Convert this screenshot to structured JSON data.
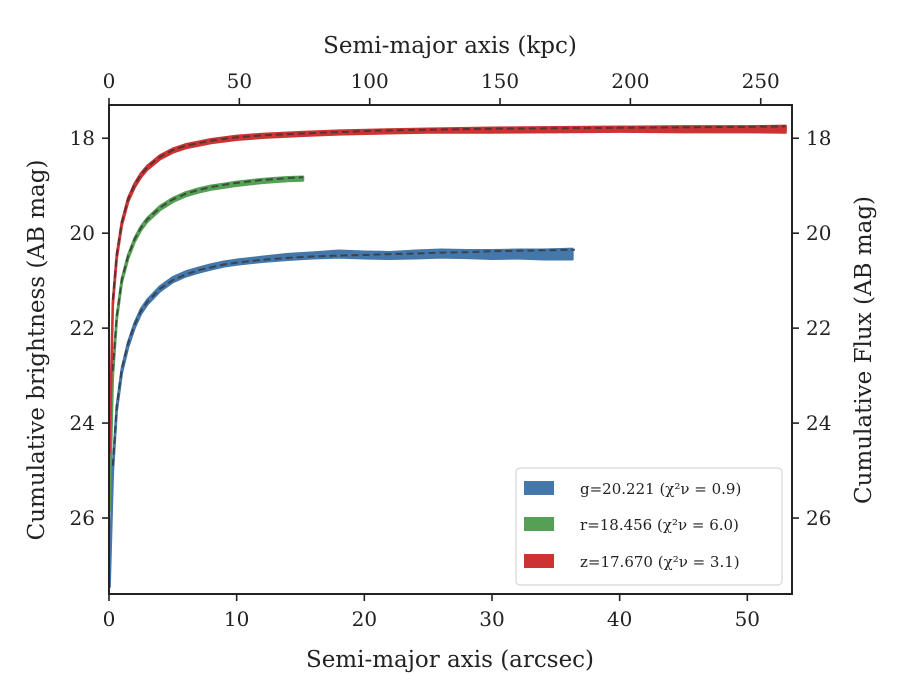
{
  "chart_data": {
    "type": "line",
    "xlabel": "Semi-major axis (arcsec)",
    "ylabel": "Cumulative brightness (AB mag)",
    "top_xlabel": "Semi-major axis (kpc)",
    "right_ylabel": "Cumulative Flux (AB mag)",
    "xlim": [
      0,
      53.5
    ],
    "ylim": [
      27.6,
      17.3
    ],
    "top_xlim": [
      0,
      262
    ],
    "y_inverted": true,
    "xticks": [
      0,
      10,
      20,
      30,
      40,
      50
    ],
    "top_xticks": [
      0,
      50,
      100,
      150,
      200,
      250
    ],
    "yticks": [
      18,
      20,
      22,
      24,
      26
    ],
    "legend_position": "lower-right",
    "colors": {
      "g": "#4477aa",
      "r": "#55a055",
      "z": "#cc3333",
      "model": "#333333",
      "axis": "#222222"
    },
    "series": [
      {
        "name": "g=20.221",
        "chi2_label": "(χ²ν = 0.9)",
        "band": "g",
        "x": [
          0.05,
          0.3,
          0.6,
          1.0,
          1.5,
          2.0,
          2.5,
          3.0,
          4.0,
          5.0,
          6.0,
          7.0,
          8.0,
          9.0,
          10.0,
          12.0,
          14.0,
          16.0,
          18.0,
          20.0,
          22.0,
          24.0,
          26.0,
          28.0,
          30.0,
          32.0,
          34.0,
          36.3
        ],
        "y": [
          27.4,
          25.0,
          23.7,
          22.9,
          22.35,
          21.95,
          21.65,
          21.45,
          21.17,
          20.98,
          20.86,
          20.78,
          20.71,
          20.65,
          20.61,
          20.55,
          20.5,
          20.47,
          20.44,
          20.46,
          20.47,
          20.45,
          20.43,
          20.44,
          20.45,
          20.44,
          20.45,
          20.44
        ],
        "halfwidth": [
          0.05,
          0.05,
          0.05,
          0.05,
          0.05,
          0.05,
          0.05,
          0.05,
          0.05,
          0.05,
          0.05,
          0.05,
          0.05,
          0.05,
          0.05,
          0.05,
          0.06,
          0.06,
          0.07,
          0.07,
          0.07,
          0.08,
          0.08,
          0.08,
          0.09,
          0.09,
          0.1,
          0.11
        ],
        "model_x": [
          0.3,
          0.6,
          1.0,
          1.5,
          2.0,
          2.5,
          3.0,
          4.0,
          5.0,
          6.0,
          7.0,
          8.0,
          9.0,
          10.0,
          12.0,
          14.0,
          16.0,
          18.0,
          20.0,
          22.0,
          24.0,
          26.0,
          28.0,
          30.0,
          32.0,
          34.0,
          36.5
        ],
        "model_y": [
          24.9,
          23.65,
          22.85,
          22.32,
          21.93,
          21.64,
          21.45,
          21.17,
          20.99,
          20.87,
          20.78,
          20.72,
          20.66,
          20.62,
          20.56,
          20.52,
          20.49,
          20.47,
          20.46,
          20.44,
          20.43,
          20.41,
          20.4,
          20.38,
          20.37,
          20.36,
          20.35
        ]
      },
      {
        "name": "r=18.456",
        "chi2_label": "(χ²ν = 6.0)",
        "band": "r",
        "x": [
          0.05,
          0.3,
          0.6,
          1.0,
          1.5,
          2.0,
          2.5,
          3.0,
          4.0,
          5.0,
          6.0,
          7.0,
          8.0,
          9.0,
          10.0,
          11.0,
          12.0,
          13.0,
          14.0,
          15.2
        ],
        "y": [
          25.8,
          23.0,
          21.8,
          21.0,
          20.5,
          20.15,
          19.9,
          19.72,
          19.47,
          19.3,
          19.18,
          19.1,
          19.04,
          19.0,
          18.96,
          18.93,
          18.9,
          18.88,
          18.86,
          18.85
        ],
        "halfwidth": [
          0.04,
          0.04,
          0.04,
          0.04,
          0.04,
          0.04,
          0.04,
          0.04,
          0.04,
          0.04,
          0.04,
          0.04,
          0.04,
          0.04,
          0.04,
          0.04,
          0.04,
          0.04,
          0.04,
          0.04
        ],
        "model_x": [
          0.3,
          0.6,
          1.0,
          1.5,
          2.0,
          2.5,
          3.0,
          4.0,
          5.0,
          6.0,
          7.0,
          8.0,
          9.0,
          10.0,
          11.0,
          12.0,
          13.0,
          14.0,
          15.2
        ],
        "model_y": [
          22.9,
          21.75,
          20.98,
          20.48,
          20.13,
          19.89,
          19.71,
          19.46,
          19.29,
          19.17,
          19.09,
          19.03,
          18.98,
          18.94,
          18.91,
          18.88,
          18.86,
          18.84,
          18.82
        ]
      },
      {
        "name": "z=17.670",
        "chi2_label": "(χ²ν = 3.1)",
        "band": "z",
        "x": [
          0.05,
          0.3,
          0.6,
          1.0,
          1.5,
          2.0,
          2.5,
          3.0,
          4.0,
          5.0,
          6.0,
          8.0,
          10.0,
          12.0,
          15.0,
          18.0,
          21.0,
          25.0,
          30.0,
          35.0,
          40.0,
          45.0,
          50.0,
          53.0
        ],
        "y": [
          24.6,
          21.5,
          20.5,
          19.8,
          19.3,
          19.0,
          18.78,
          18.62,
          18.4,
          18.26,
          18.17,
          18.06,
          17.99,
          17.95,
          17.91,
          17.88,
          17.86,
          17.84,
          17.83,
          17.82,
          17.81,
          17.81,
          17.81,
          17.81
        ],
        "halfwidth": [
          0.04,
          0.04,
          0.04,
          0.04,
          0.04,
          0.04,
          0.04,
          0.04,
          0.04,
          0.04,
          0.04,
          0.04,
          0.04,
          0.04,
          0.04,
          0.04,
          0.04,
          0.04,
          0.05,
          0.05,
          0.05,
          0.06,
          0.06,
          0.07
        ],
        "model_x": [
          0.3,
          0.6,
          1.0,
          1.5,
          2.0,
          2.5,
          3.0,
          4.0,
          5.0,
          6.0,
          8.0,
          10.0,
          12.0,
          15.0,
          18.0,
          21.0,
          25.0,
          30.0,
          35.0,
          40.0,
          45.0,
          50.0,
          53.0
        ],
        "model_y": [
          21.4,
          20.45,
          19.77,
          19.28,
          18.98,
          18.77,
          18.61,
          18.39,
          18.25,
          18.16,
          18.05,
          17.98,
          17.94,
          17.9,
          17.87,
          17.84,
          17.82,
          17.8,
          17.79,
          17.78,
          17.77,
          17.76,
          17.75
        ]
      }
    ]
  }
}
